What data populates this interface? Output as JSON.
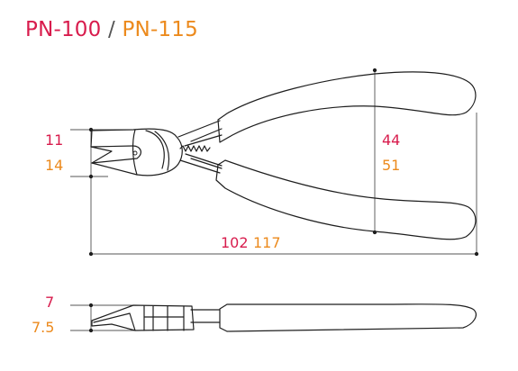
{
  "colors": {
    "primary": "#d81c4d",
    "secondary": "#ec8a1d",
    "line": "#1e1e1e",
    "separator": "#555555"
  },
  "title": {
    "model_a": "PN-100",
    "separator": " / ",
    "model_b": "PN-115"
  },
  "dimensions": {
    "jaw_width": {
      "a": "11",
      "b": "14"
    },
    "handle_span": {
      "a": "44",
      "b": "51"
    },
    "length": {
      "a": "102",
      "b": "117"
    },
    "thickness": {
      "a": "7",
      "b": "7.5"
    }
  }
}
